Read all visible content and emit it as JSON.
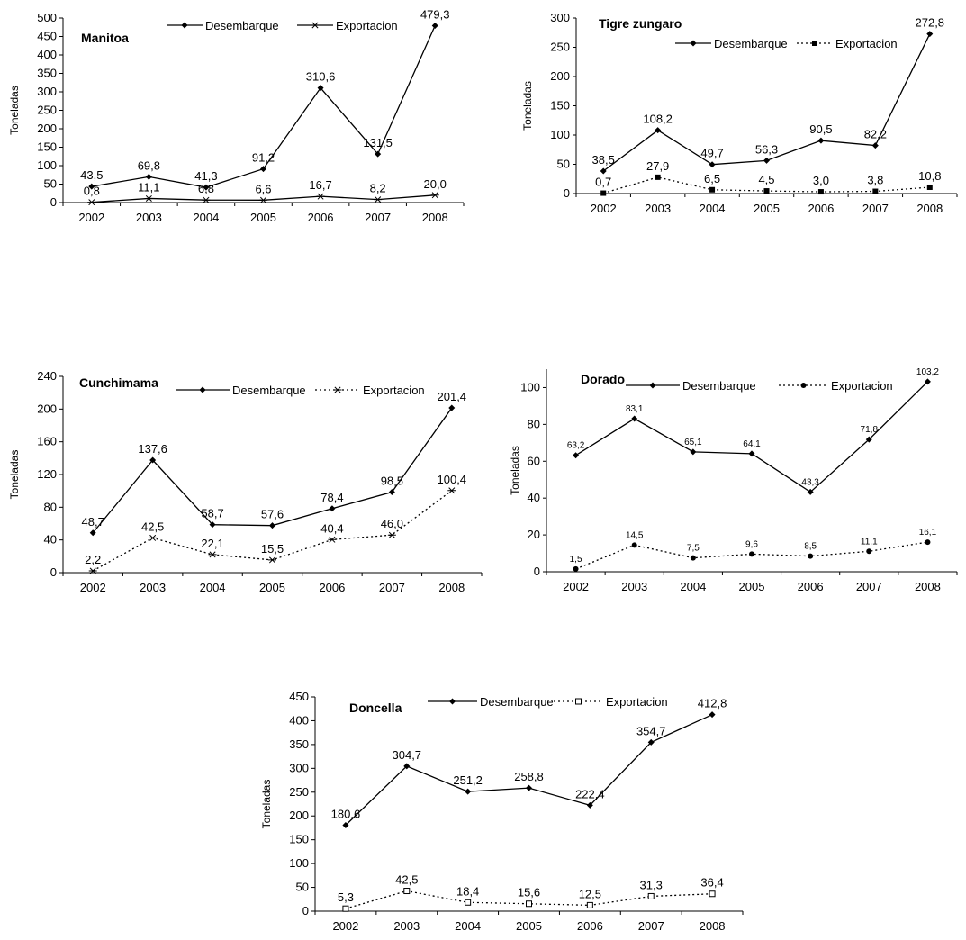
{
  "charts": [
    {
      "type": "line",
      "title": "Manitoa",
      "ylabel": "Toneladas",
      "x": [
        "2002",
        "2003",
        "2004",
        "2005",
        "2006",
        "2007",
        "2008"
      ],
      "ylim": [
        0,
        500
      ],
      "yticks": [
        0,
        50,
        100,
        150,
        200,
        250,
        300,
        350,
        400,
        450,
        500
      ],
      "grid": false,
      "legend": "top",
      "series": [
        {
          "name": "Desembarque",
          "style": "solid",
          "marker": "diamond",
          "values": [
            43.5,
            69.8,
            41.3,
            91.2,
            310.6,
            131.5,
            479.3
          ],
          "labels": [
            "43,5",
            "69,8",
            "41,3",
            "91,2",
            "310,6",
            "131,5",
            "479,3"
          ]
        },
        {
          "name": "Exportacion",
          "style": "solid",
          "marker": "star",
          "values": [
            0.8,
            11.1,
            6.8,
            6.6,
            16.7,
            8.2,
            20.0
          ],
          "labels": [
            "0,8",
            "11,1",
            "6,8",
            "6,6",
            "16,7",
            "8,2",
            "20,0"
          ]
        }
      ]
    },
    {
      "type": "line",
      "title": "Tigre zungaro",
      "ylabel": "Toneladas",
      "x": [
        "2002",
        "2003",
        "2004",
        "2005",
        "2006",
        "2007",
        "2008"
      ],
      "ylim": [
        0,
        300
      ],
      "yticks": [
        0,
        50,
        100,
        150,
        200,
        250,
        300
      ],
      "grid": false,
      "legend": "top",
      "series": [
        {
          "name": "Desembarque",
          "style": "solid",
          "marker": "diamond",
          "values": [
            38.5,
            108.2,
            49.7,
            56.3,
            90.5,
            82.2,
            272.8
          ],
          "labels": [
            "38,5",
            "108,2",
            "49,7",
            "56,3",
            "90,5",
            "82,2",
            "272,8"
          ]
        },
        {
          "name": "Exportacion",
          "style": "dotted",
          "marker": "square",
          "values": [
            0.7,
            27.9,
            6.5,
            4.5,
            3.0,
            3.8,
            10.8
          ],
          "labels": [
            "0,7",
            "27,9",
            "6,5",
            "4,5",
            "3,0",
            "3,8",
            "10,8"
          ]
        }
      ]
    },
    {
      "type": "line",
      "title": "Cunchimama",
      "ylabel": "Toneladas",
      "x": [
        "2002",
        "2003",
        "2004",
        "2005",
        "2006",
        "2007",
        "2008"
      ],
      "ylim": [
        0,
        240
      ],
      "yticks": [
        0,
        40,
        80,
        120,
        160,
        200,
        240
      ],
      "grid": false,
      "legend": "top",
      "series": [
        {
          "name": "Desembarque",
          "style": "solid",
          "marker": "diamond",
          "values": [
            48.7,
            137.6,
            58.7,
            57.6,
            78.4,
            98.5,
            201.4
          ],
          "labels": [
            "48,7",
            "137,6",
            "58,7",
            "57,6",
            "78,4",
            "98,5",
            "201,4"
          ]
        },
        {
          "name": "Exportacion",
          "style": "dotted",
          "marker": "star",
          "values": [
            2.2,
            42.5,
            22.1,
            15.5,
            40.4,
            46.0,
            100.4
          ],
          "labels": [
            "2,2",
            "42,5",
            "22,1",
            "15,5",
            "40,4",
            "46,0",
            "100,4"
          ]
        }
      ]
    },
    {
      "type": "line",
      "title": "Dorado",
      "ylabel": "Toneladas",
      "x": [
        "2002",
        "2003",
        "2004",
        "2005",
        "2006",
        "2007",
        "2008"
      ],
      "ylim": [
        0,
        110
      ],
      "yticks": [
        0,
        20,
        40,
        60,
        80,
        100
      ],
      "grid": false,
      "legend": "top",
      "series": [
        {
          "name": "Desembarque",
          "style": "solid",
          "marker": "diamond",
          "values": [
            63.2,
            83.1,
            65.1,
            64.1,
            43.3,
            71.8,
            103.2
          ],
          "labels": [
            "63,2",
            "83,1",
            "65,1",
            "64,1",
            "43,3",
            "71,8",
            "103,2"
          ]
        },
        {
          "name": "Exportacion",
          "style": "dotted",
          "marker": "circle",
          "values": [
            1.5,
            14.5,
            7.5,
            9.6,
            8.5,
            11.1,
            16.1
          ],
          "labels": [
            "1,5",
            "14,5",
            "7,5",
            "9,6",
            "8,5",
            "11,1",
            "16,1"
          ]
        }
      ]
    },
    {
      "type": "line",
      "title": "Doncella",
      "ylabel": "Toneladas",
      "x": [
        "2002",
        "2003",
        "2004",
        "2005",
        "2006",
        "2007",
        "2008"
      ],
      "ylim": [
        0,
        450
      ],
      "yticks": [
        0,
        50,
        100,
        150,
        200,
        250,
        300,
        350,
        400,
        450
      ],
      "grid": false,
      "legend": "top",
      "series": [
        {
          "name": "Desembarque",
          "style": "solid",
          "marker": "diamond",
          "values": [
            180.6,
            304.7,
            251.2,
            258.8,
            222.4,
            354.7,
            412.8
          ],
          "labels": [
            "180,6",
            "304,7",
            "251,2",
            "258,8",
            "222,4",
            "354,7",
            "412,8"
          ]
        },
        {
          "name": "Exportacion",
          "style": "dotted",
          "marker": "open-square",
          "values": [
            5.3,
            42.5,
            18.4,
            15.6,
            12.5,
            31.3,
            36.4
          ],
          "labels": [
            "5,3",
            "42,5",
            "18,4",
            "15,6",
            "12,5",
            "31,3",
            "36,4"
          ]
        }
      ]
    }
  ]
}
